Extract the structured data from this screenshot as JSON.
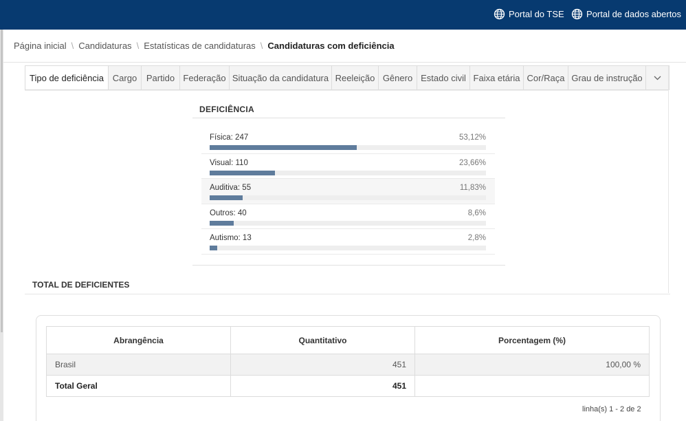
{
  "header": {
    "links": [
      {
        "label": "Portal do TSE",
        "icon": "globe-icon"
      },
      {
        "label": "Portal de dados abertos",
        "icon": "globe-icon"
      }
    ],
    "bg_color": "#073a70"
  },
  "breadcrumb": {
    "items": [
      "Página inicial",
      "Candidaturas",
      "Estatísticas de candidaturas"
    ],
    "separator": "\\",
    "current": "Candidaturas com deficiência"
  },
  "tabs": [
    "Tipo de deficiência",
    "Cargo",
    "Partido",
    "Federação",
    "Situação da candidatura",
    "Reeleição",
    "Gênero",
    "Estado civil",
    "Faixa etária",
    "Cor/Raça",
    "Grau de instrução"
  ],
  "active_tab": "Tipo de deficiência",
  "deficiencia": {
    "title": "DEFICIÊNCIA",
    "items": [
      {
        "label": "Física: 247",
        "pct": "53,12%",
        "fraction": 0.5312
      },
      {
        "label": "Visual: 110",
        "pct": "23,66%",
        "fraction": 0.2366
      },
      {
        "label": "Auditiva: 55",
        "pct": "11,83%",
        "fraction": 0.1183
      },
      {
        "label": "Outros: 40",
        "pct": "8,6%",
        "fraction": 0.086
      },
      {
        "label": "Autismo: 13",
        "pct": "2,8%",
        "fraction": 0.028
      }
    ],
    "bar_color": "#5f7c9c"
  },
  "total": {
    "title": "TOTAL DE DEFICIENTES",
    "headers": [
      "Abrangência",
      "Quantitativo",
      "Porcentagem (%)"
    ],
    "rows": [
      {
        "abrangencia": "Brasil",
        "quantitativo": "451",
        "porcentagem": "100,00 %"
      }
    ],
    "total_row": {
      "label": "Total Geral",
      "quantitativo": "451",
      "porcentagem": ""
    },
    "pagination": "linha(s) 1 - 2 de 2"
  }
}
